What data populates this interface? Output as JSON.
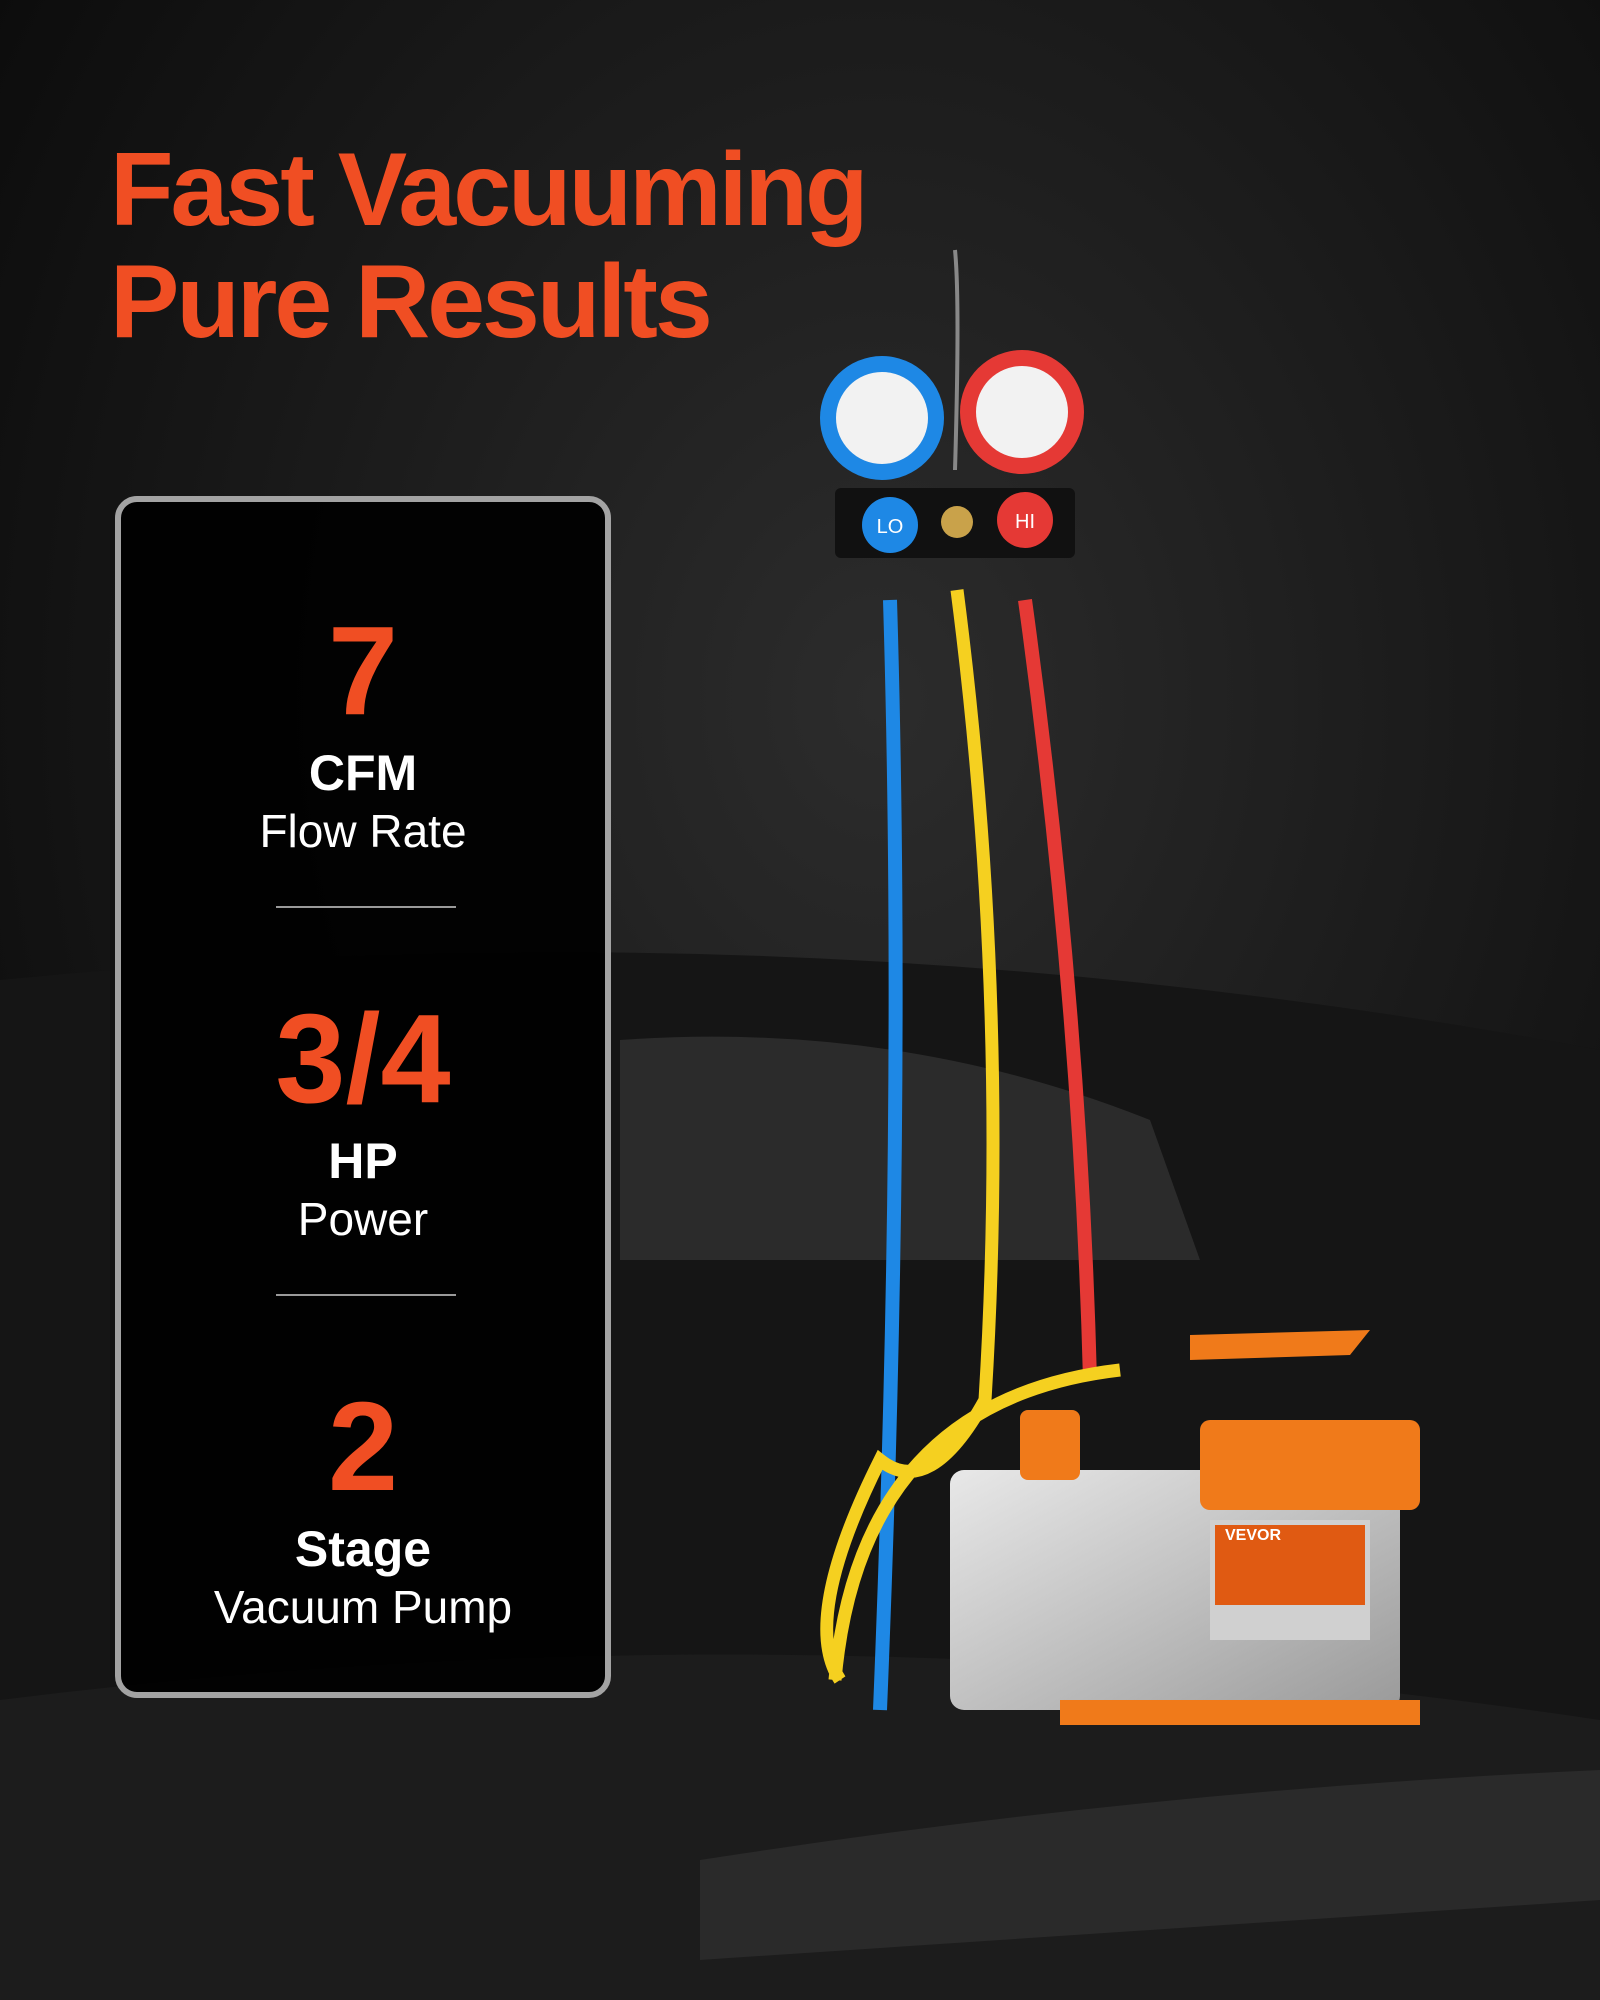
{
  "headline": {
    "line1": "Fast Vacuuming",
    "line2": "Pure Results"
  },
  "specs": [
    {
      "value": "7",
      "unit": "CFM",
      "label": "Flow Rate"
    },
    {
      "value": "3/4",
      "unit": "HP",
      "label": "Power"
    },
    {
      "value": "2",
      "unit": "Stage",
      "label": "Vacuum Pump"
    }
  ],
  "brand": "VEVOR",
  "gauges": {
    "low": "LO",
    "high": "HI"
  },
  "colors": {
    "accent": "#f04e23",
    "panel_border": "#a3a3a3",
    "low_side": "#1e88e5",
    "high_side": "#e53935",
    "charge_hose": "#f5d020",
    "pump": "#f07a1a"
  }
}
